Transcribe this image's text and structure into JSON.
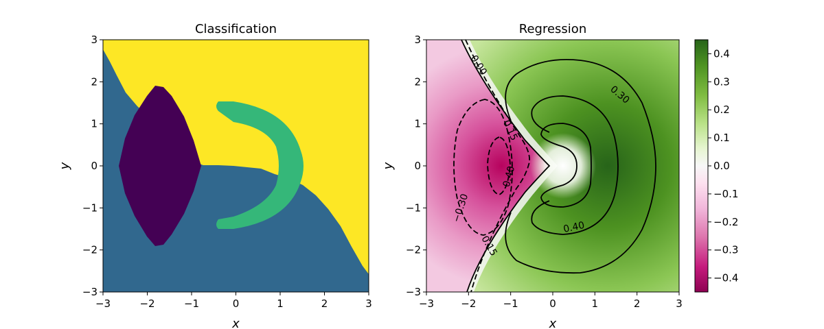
{
  "chart_data": [
    {
      "type": "heatmap",
      "title": "Classification",
      "xlabel": "x",
      "ylabel": "y",
      "xlim": [
        -3,
        3
      ],
      "ylim": [
        -3,
        3
      ],
      "xticks": [
        "−3",
        "−2",
        "−1",
        "0",
        "1",
        "2",
        "3"
      ],
      "yticks": [
        "−3",
        "−2",
        "−1",
        "0",
        "1",
        "2",
        "3"
      ],
      "colormap": "viridis",
      "classes": [
        {
          "region": "diamond",
          "color": "#440154",
          "center_x": -1.85,
          "center_y": 0,
          "half_width": 0.95,
          "half_height": 1.88
        },
        {
          "region": "half-ring",
          "color": "#35b779",
          "center_x": 0,
          "center_y": 0,
          "radius": 1.35,
          "thickness": 0.5,
          "open_side": "left"
        },
        {
          "region": "upper-right",
          "color": "#fde725"
        },
        {
          "region": "background",
          "color": "#31688e"
        }
      ],
      "grid": false
    },
    {
      "type": "heatmap",
      "title": "Regression",
      "xlabel": "x",
      "ylabel": "y",
      "xlim": [
        -3,
        3
      ],
      "ylim": [
        -3,
        3
      ],
      "xticks": [
        "−3",
        "−2",
        "−1",
        "0",
        "1",
        "2",
        "3"
      ],
      "yticks": [
        "−3",
        "−2",
        "−1",
        "0",
        "1",
        "2",
        "3"
      ],
      "colormap": "PiYG",
      "vmin": -0.45,
      "vmax": 0.45,
      "colorbar_ticks": [
        "0.4",
        "0.3",
        "0.2",
        "0.1",
        "0.0",
        "−0.1",
        "−0.2",
        "−0.3",
        "−0.4"
      ],
      "colorbar_values": [
        0.4,
        0.3,
        0.2,
        0.1,
        0.0,
        -0.1,
        -0.2,
        -0.3,
        -0.4
      ],
      "positive_peak": {
        "x": 1.0,
        "y": 0.0,
        "value": 0.44
      },
      "negative_peak": {
        "x": -1.25,
        "y": 0.0,
        "value": -0.44
      },
      "contour_levels": [
        -0.4,
        -0.3,
        -0.15,
        0.0,
        0.15,
        0.3,
        0.4
      ],
      "contour_labels": [
        {
          "text": "0.00",
          "x": -1.75,
          "y": 2.4,
          "angle": 58
        },
        {
          "text": "0.30",
          "x": 1.6,
          "y": 1.7,
          "angle": 40
        },
        {
          "text": "0.40",
          "x": 0.5,
          "y": -1.45,
          "angle": -12
        },
        {
          "text": "0.15",
          "x": -1.0,
          "y": 0.85,
          "angle": 65
        },
        {
          "text": "0.40",
          "x": -1.05,
          "y": -0.25,
          "angle": -75
        },
        {
          "text": "−0.30",
          "x": -2.2,
          "y": -1.0,
          "angle": -72
        },
        {
          "text": "0.15",
          "x": -1.5,
          "y": -1.9,
          "angle": 60
        }
      ],
      "grid": false
    }
  ]
}
